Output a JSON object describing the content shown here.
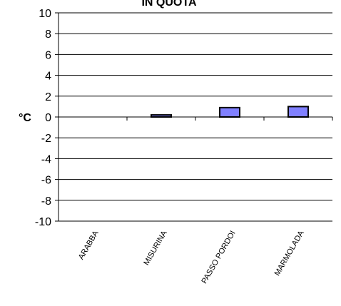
{
  "chart_data": {
    "type": "bar",
    "title": "IN QUOTA",
    "ylabel": "°C",
    "xlabel": "",
    "categories": [
      "ARABBA",
      "MISURINA",
      "PASSO PORDOI",
      "MARMOLADA"
    ],
    "values": [
      0,
      0.2,
      0.9,
      1.0
    ],
    "ylim": [
      -10,
      10
    ],
    "yticks": [
      10,
      8,
      6,
      4,
      2,
      0,
      -2,
      -4,
      -6,
      -8,
      -10
    ],
    "grid": true,
    "bar_color": "#8080FF",
    "bar_edge_color": "#000000",
    "legend": "none"
  }
}
